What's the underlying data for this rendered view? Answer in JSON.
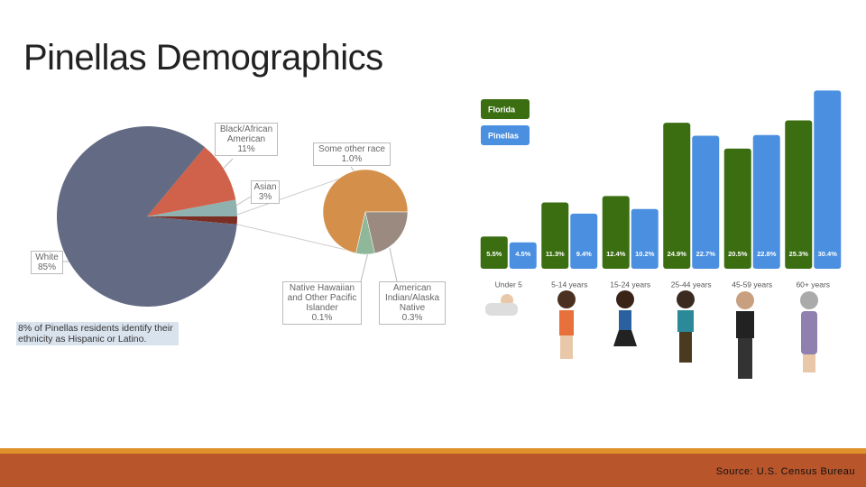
{
  "title": "Pinellas Demographics",
  "source": "Source: U.S. Census Bureau",
  "chart_data": [
    {
      "type": "pie-of-pie",
      "categories": [
        "White",
        "Black/African American",
        "Asian"
      ],
      "values": [
        85,
        11,
        3
      ],
      "value_labels": [
        "85%",
        "11%",
        "3%"
      ],
      "colors": [
        "#636a84",
        "#d0614a",
        "#8fb2b0"
      ],
      "secondary_slice_color": "#7b2f22",
      "secondary": {
        "categories": [
          "Some other race",
          "Native Hawaiian and Other Pacific Islander",
          "American Indian/Alaska Native"
        ],
        "values": [
          1.0,
          0.1,
          0.3
        ],
        "value_labels": [
          "1.0%",
          "0.1%",
          "0.3%"
        ],
        "colors": [
          "#d4904a",
          "#8fb79a",
          "#9a8a80"
        ]
      },
      "annotation": "8% of Pinellas residents identify their ethnicity as Hispanic or Latino."
    },
    {
      "type": "bar",
      "categories": [
        "Under 5",
        "5-14 years",
        "15-24 years",
        "25-44 years",
        "45-59 years",
        "60+ years"
      ],
      "series": [
        {
          "name": "Florida",
          "color": "#3a6e10",
          "values": [
            5.5,
            11.3,
            12.4,
            24.9,
            20.5,
            25.3
          ],
          "value_labels": [
            "5.5%",
            "11.3%",
            "12.4%",
            "24.9%",
            "20.5%",
            "25.3%"
          ]
        },
        {
          "name": "Pinellas",
          "color": "#4a8fe0",
          "values": [
            4.5,
            9.4,
            10.2,
            22.7,
            22.8,
            30.4
          ],
          "value_labels": [
            "4.5%",
            "9.4%",
            "10.2%",
            "22.7%",
            "22.8%",
            "30.4%"
          ]
        }
      ],
      "legend": "top-left"
    }
  ]
}
